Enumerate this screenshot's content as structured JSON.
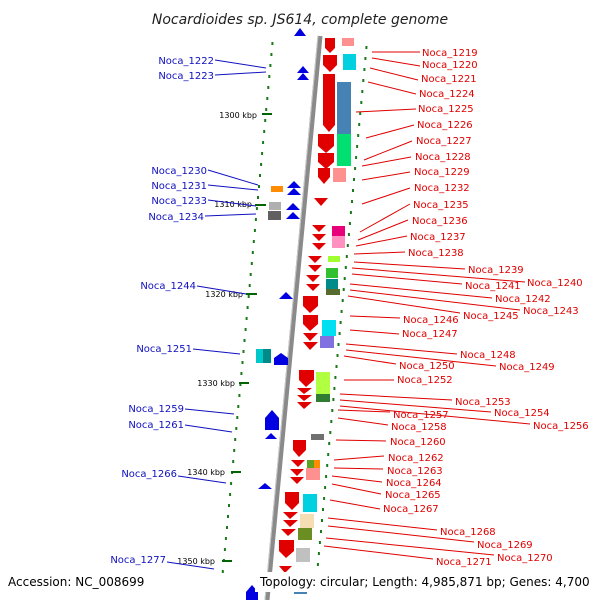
{
  "title": "Nocardioides sp. JS614, complete genome",
  "accession": "Accession: NC_008699",
  "topology": "Topology: circular; Length: 4,985,871 bp; Genes: 4,700",
  "colors": {
    "left_label": "#1010c0",
    "right_label": "#e00000",
    "axis": "#888888",
    "tick": "#006400",
    "gene_forward": "#0000e0",
    "gene_reverse": "#e00000"
  },
  "scale_ticks": [
    "1300 kbp",
    "1310 kbp",
    "1320 kbp",
    "1330 kbp",
    "1340 kbp",
    "1350 kbp"
  ],
  "left_genes": [
    "Noca_1222",
    "Noca_1223",
    "Noca_1230",
    "Noca_1231",
    "Noca_1233",
    "Noca_1234",
    "Noca_1244",
    "Noca_1251",
    "Noca_1259",
    "Noca_1261",
    "Noca_1266",
    "Noca_1277"
  ],
  "right_genes": [
    "Noca_1219",
    "Noca_1220",
    "Noca_1221",
    "Noca_1224",
    "Noca_1225",
    "Noca_1226",
    "Noca_1227",
    "Noca_1228",
    "Noca_1229",
    "Noca_1232",
    "Noca_1235",
    "Noca_1236",
    "Noca_1237",
    "Noca_1238",
    "Noca_1239",
    "Noca_1240",
    "Noca_1241",
    "Noca_1242",
    "Noca_1243",
    "Noca_1245",
    "Noca_1246",
    "Noca_1247",
    "Noca_1248",
    "Noca_1249",
    "Noca_1250",
    "Noca_1252",
    "Noca_1253",
    "Noca_1254",
    "Noca_1256",
    "Noca_1257",
    "Noca_1258",
    "Noca_1260",
    "Noca_1262",
    "Noca_1263",
    "Noca_1264",
    "Noca_1265",
    "Noca_1267",
    "Noca_1268",
    "Noca_1269",
    "Noca_1270",
    "Noca_1271"
  ]
}
